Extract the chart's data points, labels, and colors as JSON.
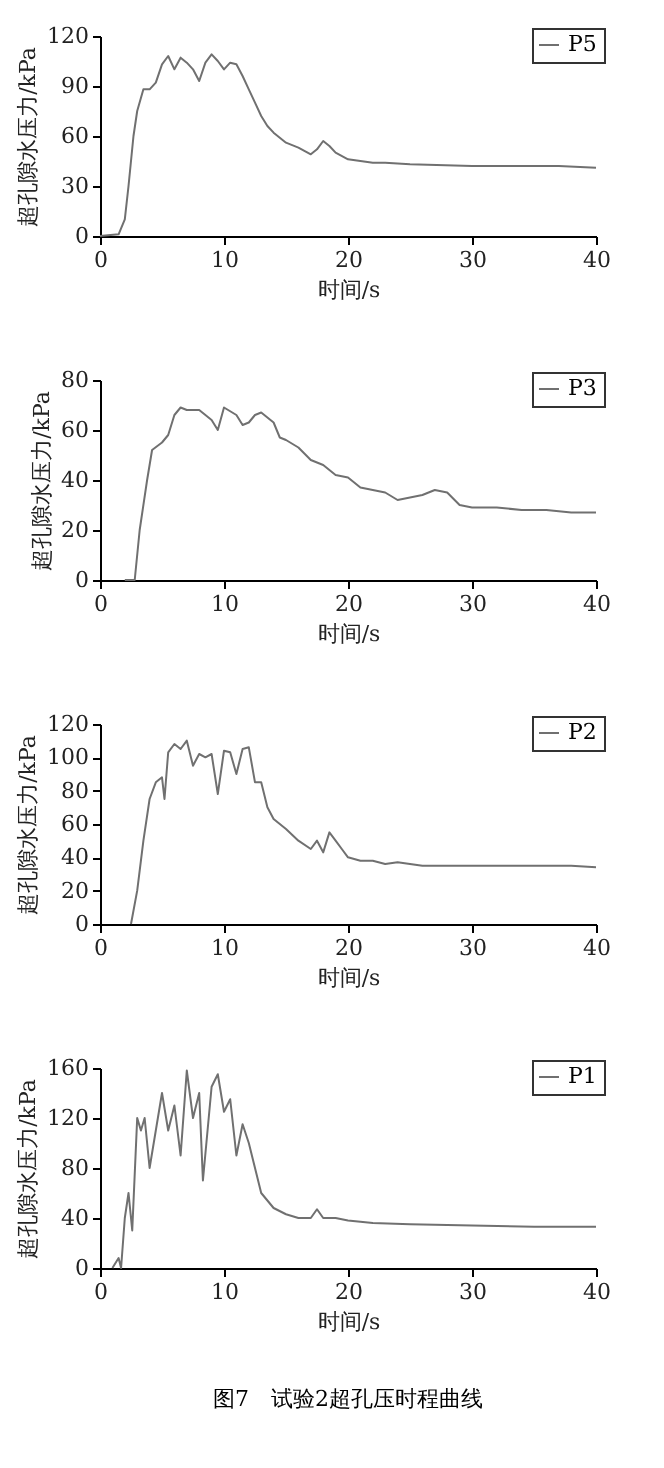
{
  "chart_data": [
    {
      "type": "line",
      "xlabel": "时间/s",
      "ylabel": "超孔隙水压力/kPa",
      "xlim": [
        0,
        40
      ],
      "xticks": [
        0,
        10,
        20,
        30,
        40
      ],
      "ylim": [
        0,
        120
      ],
      "yticks": [
        0,
        30,
        60,
        90,
        120
      ],
      "legend": "top right",
      "grid": false,
      "marker": "none",
      "line_style": "solid",
      "x": [
        0,
        1.5,
        2,
        2.3,
        2.7,
        3,
        3.5,
        4,
        4.5,
        5,
        5.5,
        6,
        6.5,
        7,
        7.5,
        8,
        8.5,
        9,
        9.5,
        10,
        10.5,
        11,
        11.5,
        12,
        12.5,
        13,
        13.5,
        14,
        15,
        16,
        17,
        17.5,
        18,
        18.5,
        19,
        20,
        21,
        22,
        23,
        25,
        30,
        35,
        37,
        40
      ],
      "series": [
        {
          "name": "P5",
          "color": "#707070",
          "values": [
            0,
            1,
            10,
            30,
            60,
            75,
            88,
            88,
            92,
            103,
            108,
            100,
            107,
            104,
            100,
            93,
            104,
            109,
            105,
            100,
            104,
            103,
            96,
            88,
            80,
            72,
            66,
            62,
            56,
            53,
            49,
            52,
            57,
            54,
            50,
            46,
            45,
            44,
            44,
            43,
            42,
            42,
            42,
            41
          ]
        }
      ]
    },
    {
      "type": "line",
      "xlabel": "时间/s",
      "ylabel": "超孔隙水压力/kPa",
      "xlim": [
        0,
        40
      ],
      "xticks": [
        0,
        10,
        20,
        30,
        40
      ],
      "ylim": [
        0,
        80
      ],
      "yticks": [
        0,
        20,
        40,
        60,
        80
      ],
      "legend": "top right",
      "grid": false,
      "marker": "none",
      "line_style": "solid",
      "x": [
        2,
        2.8,
        3.2,
        3.8,
        4.2,
        5,
        5.5,
        6,
        6.5,
        7,
        8,
        9,
        9.5,
        10,
        11,
        11.5,
        12,
        12.5,
        13,
        14,
        14.5,
        15,
        16,
        17,
        18,
        19,
        20,
        21,
        22,
        23,
        24,
        25,
        26,
        27,
        28,
        29,
        30,
        32,
        34,
        36,
        38,
        40
      ],
      "series": [
        {
          "name": "P3",
          "color": "#707070",
          "values": [
            0,
            0,
            20,
            40,
            52,
            55,
            58,
            66,
            69,
            68,
            68,
            64,
            60,
            69,
            66,
            62,
            63,
            66,
            67,
            63,
            57,
            56,
            53,
            48,
            46,
            42,
            41,
            37,
            36,
            35,
            32,
            33,
            34,
            36,
            35,
            30,
            29,
            29,
            28,
            28,
            27,
            27
          ]
        }
      ]
    },
    {
      "type": "line",
      "xlabel": "时间/s",
      "ylabel": "超孔隙水压力/kPa",
      "xlim": [
        0,
        40
      ],
      "xticks": [
        0,
        10,
        20,
        30,
        40
      ],
      "ylim": [
        0,
        120
      ],
      "yticks": [
        0,
        20,
        40,
        60,
        80,
        100,
        120
      ],
      "legend": "top right",
      "grid": false,
      "marker": "none",
      "line_style": "solid",
      "x": [
        2.5,
        3,
        3.5,
        4,
        4.5,
        5,
        5.2,
        5.5,
        6,
        6.5,
        7,
        7.5,
        8,
        8.5,
        9,
        9.5,
        10,
        10.5,
        11,
        11.5,
        12,
        12.5,
        13,
        13.5,
        14,
        15,
        16,
        17,
        17.5,
        18,
        18.5,
        19,
        19.5,
        20,
        21,
        22,
        23,
        24,
        26,
        30,
        34,
        38,
        40
      ],
      "series": [
        {
          "name": "P2",
          "color": "#707070",
          "values": [
            0,
            20,
            50,
            75,
            85,
            88,
            75,
            103,
            108,
            105,
            110,
            95,
            102,
            100,
            102,
            78,
            104,
            103,
            90,
            105,
            106,
            85,
            85,
            70,
            63,
            57,
            50,
            45,
            50,
            43,
            55,
            50,
            45,
            40,
            38,
            38,
            36,
            37,
            35,
            35,
            35,
            35,
            34
          ]
        }
      ]
    },
    {
      "type": "line",
      "xlabel": "时间/s",
      "ylabel": "超孔隙水压力/kPa",
      "xlim": [
        0,
        40
      ],
      "xticks": [
        0,
        10,
        20,
        30,
        40
      ],
      "ylim": [
        0,
        160
      ],
      "yticks": [
        0,
        40,
        80,
        120,
        160
      ],
      "legend": "top right",
      "grid": false,
      "marker": "none",
      "line_style": "solid",
      "annotations": [
        "图7　试验2超孔压时程曲线"
      ],
      "x": [
        1,
        1.5,
        1.7,
        2,
        2.3,
        2.6,
        3,
        3.3,
        3.6,
        4,
        4.5,
        5,
        5.5,
        6,
        6.5,
        7,
        7.5,
        8,
        8.3,
        9,
        9.5,
        10,
        10.5,
        11,
        11.5,
        12,
        12.5,
        13,
        14,
        15,
        16,
        17,
        17.5,
        18,
        19,
        20,
        22,
        25,
        30,
        35,
        40
      ],
      "series": [
        {
          "name": "P1",
          "color": "#707070",
          "values": [
            0,
            8,
            0,
            40,
            60,
            30,
            120,
            110,
            120,
            80,
            110,
            140,
            110,
            130,
            90,
            158,
            120,
            140,
            70,
            145,
            155,
            125,
            135,
            90,
            115,
            100,
            80,
            60,
            48,
            43,
            40,
            40,
            47,
            40,
            40,
            38,
            36,
            35,
            34,
            33,
            33
          ]
        }
      ]
    }
  ]
}
